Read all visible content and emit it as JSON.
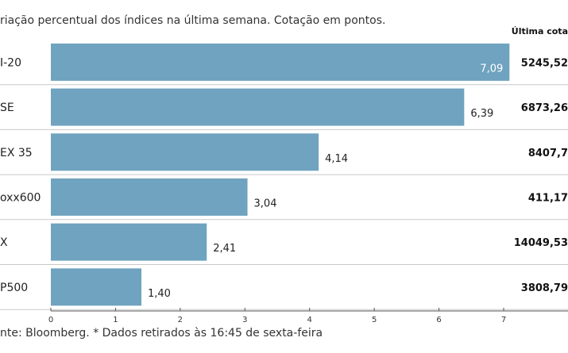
{
  "header": {
    "subtitle": "riação percentual dos índices na última semana. Cotação em pontos.",
    "column_header": "Última cota"
  },
  "footer": {
    "source": "nte: Bloomberg.  * Dados retirados às 16:45 de sexta-feira"
  },
  "colors": {
    "bar": "#6fa3bf",
    "gridline": "#c8c8c8",
    "axis": "#555555"
  },
  "chart_data": {
    "type": "bar",
    "orientation": "horizontal",
    "categories": [
      "I-20",
      "SE",
      "EX 35",
      "oxx600",
      "X",
      "P500"
    ],
    "values": [
      7.09,
      6.39,
      4.14,
      3.04,
      2.41,
      1.4
    ],
    "value_labels": [
      "7,09",
      "6,39",
      "4,14",
      "3,04",
      "2,41",
      "1,40"
    ],
    "quotes": [
      "5245,52",
      "6873,26",
      "8407,7",
      "411,17",
      "14049,53",
      "3808,79"
    ],
    "xlim": [
      0,
      7
    ],
    "xticks": [
      0,
      1,
      2,
      3,
      4,
      5,
      6,
      7
    ],
    "grid": false
  }
}
